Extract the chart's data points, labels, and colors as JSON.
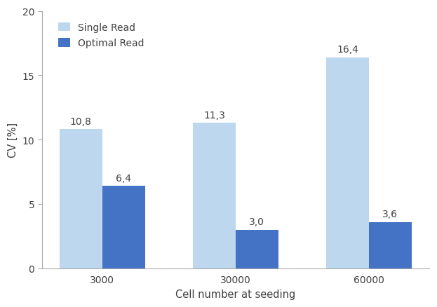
{
  "categories": [
    "3000",
    "30000",
    "60000"
  ],
  "single_read_values": [
    10.8,
    11.3,
    16.4
  ],
  "optimal_read_values": [
    6.4,
    3.0,
    3.6
  ],
  "single_read_color": "#bdd7ee",
  "optimal_read_color": "#4472c4",
  "single_read_label": "Single Read",
  "optimal_read_label": "Optimal Read",
  "xlabel": "Cell number at seeding",
  "ylabel": "CV [%]",
  "ylim": [
    0,
    20
  ],
  "yticks": [
    0,
    5,
    10,
    15,
    20
  ],
  "bar_width": 0.32,
  "label_fontsize": 10.5,
  "tick_fontsize": 10,
  "annotation_fontsize": 10,
  "legend_fontsize": 10,
  "background_color": "#ffffff",
  "text_color": "#404040",
  "spine_color": "#aaaaaa"
}
